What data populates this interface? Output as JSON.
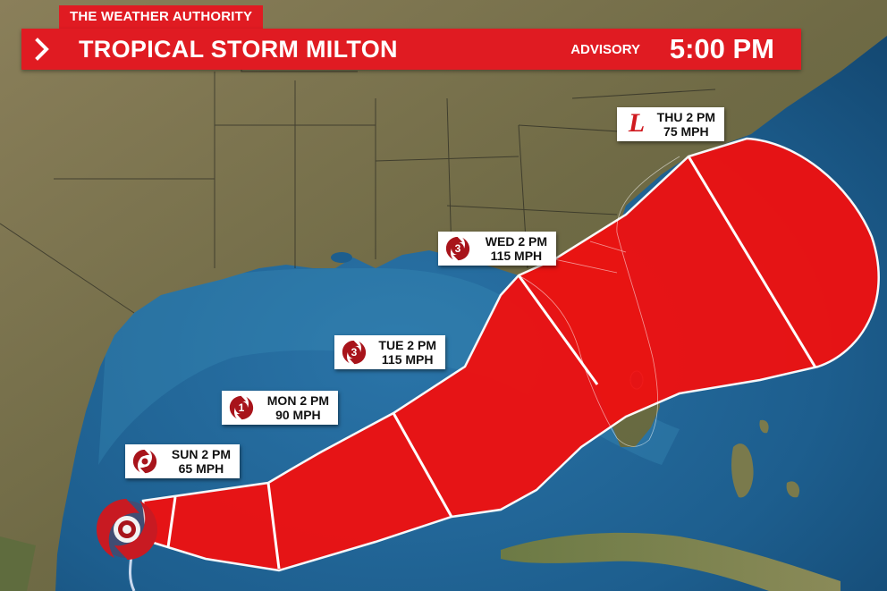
{
  "brand": "THE WEATHER AUTHORITY",
  "header": {
    "storm_name": "TROPICAL STORM MILTON",
    "advisory_label": "ADVISORY",
    "advisory_time": "5:00 PM"
  },
  "forecast_points": [
    {
      "time": "SUN 2 PM",
      "wind": "65 MPH",
      "category": "",
      "icon": "tropical-storm-icon"
    },
    {
      "time": "MON 2 PM",
      "wind": "90 MPH",
      "category": "1",
      "icon": "hurricane-icon"
    },
    {
      "time": "TUE 2 PM",
      "wind": "115 MPH",
      "category": "3",
      "icon": "hurricane-icon"
    },
    {
      "time": "WED 2 PM",
      "wind": "115 MPH",
      "category": "3",
      "icon": "hurricane-icon"
    },
    {
      "time": "THU 2 PM",
      "wind": "75 MPH",
      "category": "L",
      "icon": "low-pressure-icon"
    }
  ],
  "colors": {
    "brand_red": "#e01b22",
    "cone_red": "#ee1111",
    "storm_icon": "#a8141b",
    "ocean": "#1d5e8e",
    "land": "#7a7150"
  }
}
